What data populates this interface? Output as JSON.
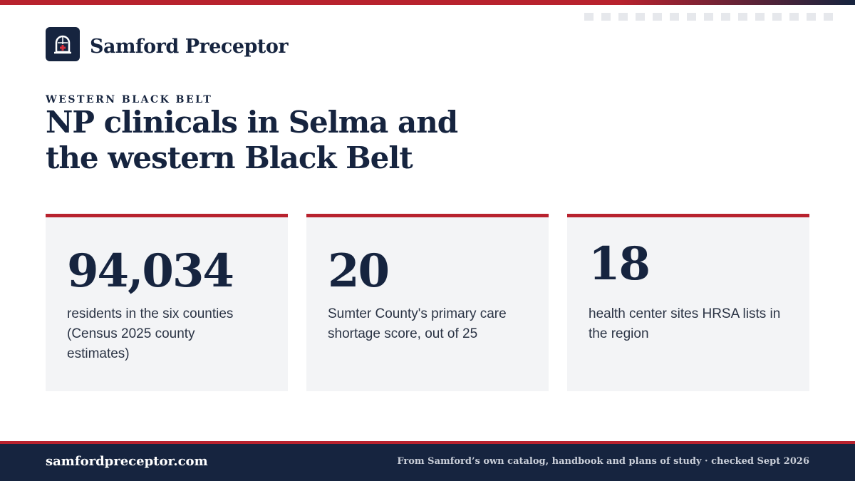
{
  "brand": {
    "name": "Samford Preceptor",
    "logo_icon": "arched-window-cross-icon"
  },
  "hero": {
    "eyebrow": "WESTERN BLACK BELT",
    "title_lines": [
      "NP clinicals in Selma and",
      "the western Black Belt"
    ]
  },
  "stats": [
    {
      "value": "94,034",
      "description": "residents in the six counties (Census 2025 county estimates)"
    },
    {
      "value": "20",
      "description": "Sumter County's primary care shortage score, out of 25"
    },
    {
      "value": "18",
      "description": "health center sites HRSA lists in the region"
    }
  ],
  "footer": {
    "url": "samfordpreceptor.com",
    "note": "From Samford’s own catalog, handbook and plans of study · checked Sept 2026"
  },
  "colors": {
    "navy": "#16243f",
    "accent_red": "#b8222e",
    "card_bg": "#f3f4f6"
  }
}
